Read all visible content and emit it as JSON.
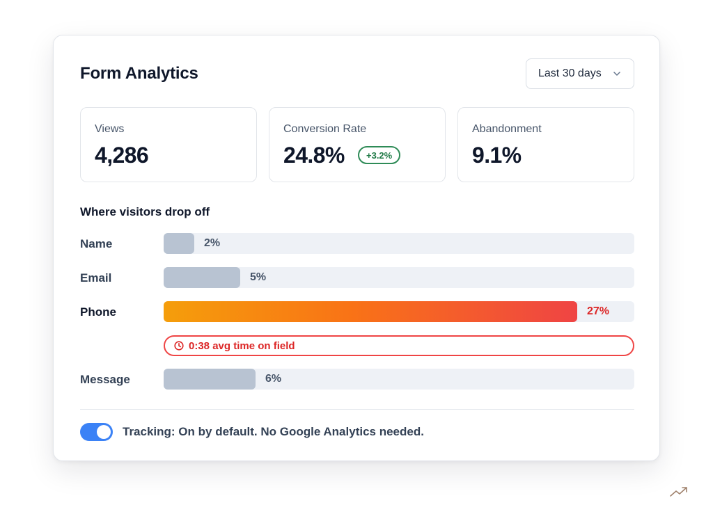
{
  "header": {
    "title": "Form Analytics",
    "range_selected": "Last 30 days"
  },
  "stats": [
    {
      "label": "Views",
      "value": "4,286"
    },
    {
      "label": "Conversion Rate",
      "value": "24.8%",
      "delta": "+3.2%"
    },
    {
      "label": "Abandonment",
      "value": "9.1%"
    }
  ],
  "dropoff": {
    "title": "Where visitors drop off",
    "rows": [
      {
        "label": "Name",
        "value": 2,
        "display": "2%"
      },
      {
        "label": "Email",
        "value": 5,
        "display": "5%"
      },
      {
        "label": "Phone",
        "value": 27,
        "display": "27%",
        "highlight": true
      },
      {
        "label": "Message",
        "value": 6,
        "display": "6%"
      }
    ],
    "phone_note": "0:38 avg time on field"
  },
  "footer": {
    "tracking_enabled": true,
    "tracking_text": "Tracking: On by default. No Google Analytics needed."
  },
  "colors": {
    "accent": "#3b82f6",
    "bar_neutral": "#b8c3d2",
    "bar_hot_start": "#f59e0b",
    "bar_hot_end": "#ef4444",
    "positive": "#2e8b57",
    "warning": "#dc2626"
  },
  "icons": {
    "dropdown": "chevron-down-icon",
    "note": "clock-icon",
    "corner": "trend-up-icon"
  }
}
